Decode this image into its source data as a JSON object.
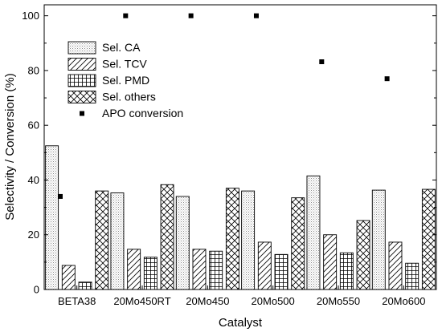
{
  "chart_data": {
    "type": "bar",
    "title": "",
    "xlabel": "Catalyst",
    "ylabel": "Selectivity / Conversion (%)",
    "ylim": [
      0,
      104
    ],
    "yticks": [
      0,
      20,
      40,
      60,
      80,
      100
    ],
    "categories": [
      "BETA38",
      "20Mo450RT",
      "20Mo450",
      "20Mo500",
      "20Mo550",
      "20Mo600"
    ],
    "series": [
      {
        "name": "Sel. CA",
        "pattern": "dots",
        "values": [
          52.5,
          35.3,
          34.0,
          36.0,
          41.5,
          36.3
        ]
      },
      {
        "name": "Sel. TCV",
        "pattern": "diagonal",
        "values": [
          8.8,
          14.7,
          14.7,
          17.3,
          20.0,
          17.3
        ]
      },
      {
        "name": "Sel. PMD",
        "pattern": "grid",
        "values": [
          2.7,
          11.8,
          14.0,
          12.8,
          13.4,
          9.6
        ]
      },
      {
        "name": "Sel. others",
        "pattern": "crosshatch",
        "values": [
          36.0,
          38.3,
          37.0,
          33.5,
          25.2,
          36.6
        ]
      }
    ],
    "scatter_series": {
      "name": "APO conversion",
      "marker": "square",
      "color": "#000000",
      "values": [
        34.0,
        100.0,
        100.0,
        100.0,
        83.2,
        77.0
      ]
    },
    "legend_position": "upper-left",
    "grid": false
  }
}
